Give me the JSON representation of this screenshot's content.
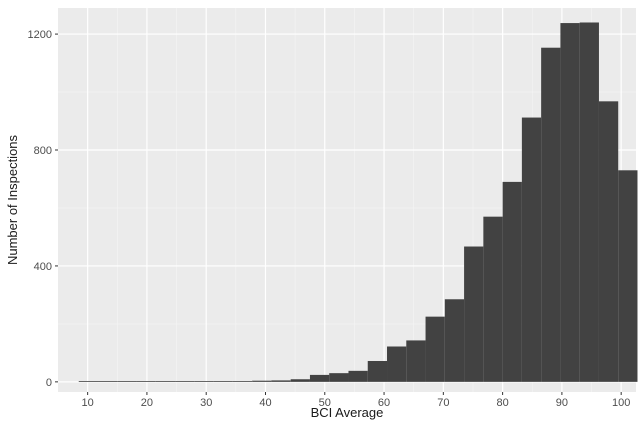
{
  "chart_data": {
    "type": "bar",
    "style": "histogram",
    "xlabel": "BCI Average",
    "ylabel": "Number of Inspections",
    "xlim": [
      5,
      102.5
    ],
    "ylim": [
      -35,
      1290
    ],
    "x_ticks": [
      10,
      20,
      30,
      40,
      50,
      60,
      70,
      80,
      90,
      100
    ],
    "y_ticks": [
      0,
      400,
      800,
      1200
    ],
    "grid": true,
    "panel_color": "#ebebeb",
    "bar_color": "#424242",
    "bin_width": 3.25,
    "bins": [
      {
        "x0": 8.5,
        "x1": 11.75,
        "count": 1
      },
      {
        "x0": 11.75,
        "x1": 15.0,
        "count": 0
      },
      {
        "x0": 15.0,
        "x1": 18.25,
        "count": 0
      },
      {
        "x0": 18.25,
        "x1": 21.5,
        "count": 1
      },
      {
        "x0": 21.5,
        "x1": 24.75,
        "count": 0
      },
      {
        "x0": 24.75,
        "x1": 28.0,
        "count": 1
      },
      {
        "x0": 28.0,
        "x1": 31.25,
        "count": 2
      },
      {
        "x0": 31.25,
        "x1": 34.5,
        "count": 1
      },
      {
        "x0": 34.5,
        "x1": 37.75,
        "count": 2
      },
      {
        "x0": 37.75,
        "x1": 41.0,
        "count": 4
      },
      {
        "x0": 41.0,
        "x1": 44.25,
        "count": 5
      },
      {
        "x0": 44.25,
        "x1": 47.5,
        "count": 9
      },
      {
        "x0": 47.5,
        "x1": 50.75,
        "count": 24
      },
      {
        "x0": 50.75,
        "x1": 54.0,
        "count": 30
      },
      {
        "x0": 54.0,
        "x1": 57.25,
        "count": 38
      },
      {
        "x0": 57.25,
        "x1": 60.5,
        "count": 72
      },
      {
        "x0": 60.5,
        "x1": 63.75,
        "count": 122
      },
      {
        "x0": 63.75,
        "x1": 67.0,
        "count": 143
      },
      {
        "x0": 67.0,
        "x1": 70.25,
        "count": 225
      },
      {
        "x0": 70.25,
        "x1": 73.5,
        "count": 285
      },
      {
        "x0": 73.5,
        "x1": 76.75,
        "count": 467
      },
      {
        "x0": 76.75,
        "x1": 80.0,
        "count": 570
      },
      {
        "x0": 80.0,
        "x1": 83.25,
        "count": 690
      },
      {
        "x0": 83.25,
        "x1": 86.5,
        "count": 912
      },
      {
        "x0": 86.5,
        "x1": 89.75,
        "count": 1153
      },
      {
        "x0": 89.75,
        "x1": 93.0,
        "count": 1238
      },
      {
        "x0": 93.0,
        "x1": 96.25,
        "count": 1240
      },
      {
        "x0": 96.25,
        "x1": 99.5,
        "count": 968
      },
      {
        "x0": 99.5,
        "x1": 102.75,
        "count": 730
      }
    ]
  }
}
